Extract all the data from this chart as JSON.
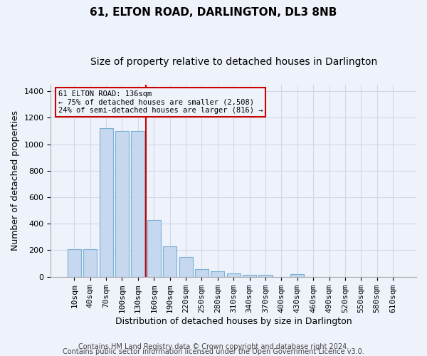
{
  "title": "61, ELTON ROAD, DARLINGTON, DL3 8NB",
  "subtitle": "Size of property relative to detached houses in Darlington",
  "xlabel": "Distribution of detached houses by size in Darlington",
  "ylabel": "Number of detached properties",
  "categories": [
    "10sqm",
    "40sqm",
    "70sqm",
    "100sqm",
    "130sqm",
    "160sqm",
    "190sqm",
    "220sqm",
    "250sqm",
    "280sqm",
    "310sqm",
    "340sqm",
    "370sqm",
    "400sqm",
    "430sqm",
    "460sqm",
    "490sqm",
    "520sqm",
    "550sqm",
    "580sqm",
    "610sqm"
  ],
  "values": [
    207,
    207,
    1120,
    1100,
    1100,
    430,
    232,
    148,
    58,
    40,
    25,
    13,
    13,
    0,
    18,
    0,
    0,
    0,
    0,
    0,
    0
  ],
  "bar_color": "#c5d8f0",
  "bar_edge_color": "#7aafd4",
  "bar_width": 0.85,
  "annotation_box_color": "#cc0000",
  "grid_color": "#d0d8e8",
  "bg_color": "#eef2fa",
  "ylim": [
    0,
    1450
  ],
  "yticks": [
    0,
    200,
    400,
    600,
    800,
    1000,
    1200,
    1400
  ],
  "ref_line_label": "61 ELTON ROAD: 136sqm",
  "annotation_line2": "← 75% of detached houses are smaller (2,508)",
  "annotation_line3": "24% of semi-detached houses are larger (816) →",
  "footer1": "Contains HM Land Registry data © Crown copyright and database right 2024.",
  "footer2": "Contains public sector information licensed under the Open Government Licence v3.0.",
  "title_fontsize": 11,
  "subtitle_fontsize": 10,
  "xlabel_fontsize": 9,
  "ylabel_fontsize": 9,
  "tick_fontsize": 8,
  "footer_fontsize": 7
}
